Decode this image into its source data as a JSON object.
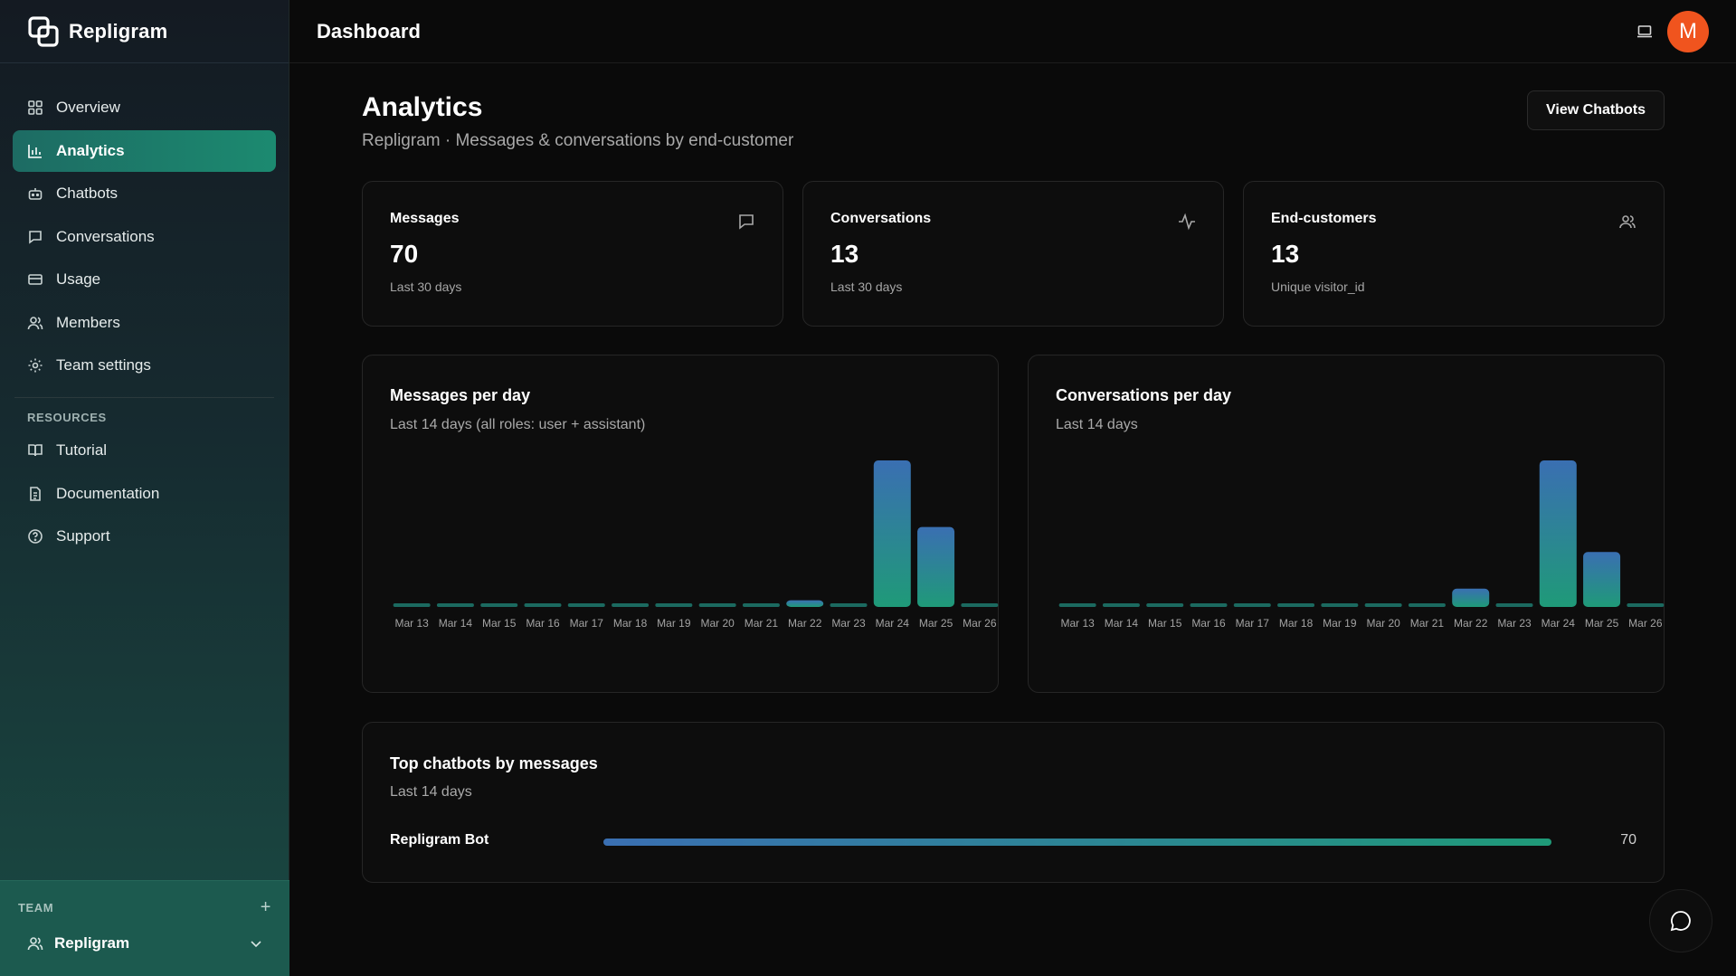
{
  "app": {
    "name": "Repligram"
  },
  "topbar": {
    "title": "Dashboard",
    "avatar_letter": "M"
  },
  "sidebar": {
    "items": [
      {
        "label": "Overview",
        "icon": "grid-icon",
        "active": false
      },
      {
        "label": "Analytics",
        "icon": "bar-chart-icon",
        "active": true
      },
      {
        "label": "Chatbots",
        "icon": "bot-icon",
        "active": false
      },
      {
        "label": "Conversations",
        "icon": "message-square-icon",
        "active": false
      },
      {
        "label": "Usage",
        "icon": "credit-card-icon",
        "active": false
      },
      {
        "label": "Members",
        "icon": "users-icon",
        "active": false
      },
      {
        "label": "Team settings",
        "icon": "gear-icon",
        "active": false
      }
    ],
    "resources_label": "RESOURCES",
    "resources": [
      {
        "label": "Tutorial",
        "icon": "book-icon"
      },
      {
        "label": "Documentation",
        "icon": "document-icon"
      },
      {
        "label": "Support",
        "icon": "help-circle-icon"
      }
    ],
    "team_label": "TEAM",
    "team_name": "Repligram"
  },
  "page": {
    "title": "Analytics",
    "subtitle": "Repligram · Messages & conversations by end-customer",
    "view_button": "View Chatbots"
  },
  "stats": [
    {
      "label": "Messages",
      "value": "70",
      "note": "Last 30 days",
      "icon": "message-square-icon"
    },
    {
      "label": "Conversations",
      "value": "13",
      "note": "Last 30 days",
      "icon": "activity-icon"
    },
    {
      "label": "End-customers",
      "value": "13",
      "note": "Unique visitor_id",
      "icon": "users-icon"
    }
  ],
  "chart_data": [
    {
      "type": "bar",
      "title": "Messages per day",
      "subtitle": "Last 14 days (all roles: user + assistant)",
      "categories": [
        "Mar 13",
        "Mar 14",
        "Mar 15",
        "Mar 16",
        "Mar 17",
        "Mar 18",
        "Mar 19",
        "Mar 20",
        "Mar 21",
        "Mar 22",
        "Mar 23",
        "Mar 24",
        "Mar 25",
        "Mar 26"
      ],
      "values": [
        0,
        0,
        0,
        0,
        0,
        0,
        0,
        0,
        0,
        2,
        0,
        44,
        24,
        0
      ],
      "grid": false
    },
    {
      "type": "bar",
      "title": "Conversations per day",
      "subtitle": "Last 14 days",
      "categories": [
        "Mar 13",
        "Mar 14",
        "Mar 15",
        "Mar 16",
        "Mar 17",
        "Mar 18",
        "Mar 19",
        "Mar 20",
        "Mar 21",
        "Mar 22",
        "Mar 23",
        "Mar 24",
        "Mar 25",
        "Mar 26"
      ],
      "values": [
        0,
        0,
        0,
        0,
        0,
        0,
        0,
        0,
        0,
        1,
        0,
        8,
        3,
        0
      ],
      "grid": false
    }
  ],
  "top_chatbots": {
    "title": "Top chatbots by messages",
    "subtitle": "Last 14 days",
    "items": [
      {
        "name": "Repligram Bot",
        "count": "70",
        "share": 1.0
      }
    ]
  },
  "colors": {
    "accent_start": "#3a6fb2",
    "accent_end": "#1f9a78",
    "avatar": "#f0541e"
  }
}
